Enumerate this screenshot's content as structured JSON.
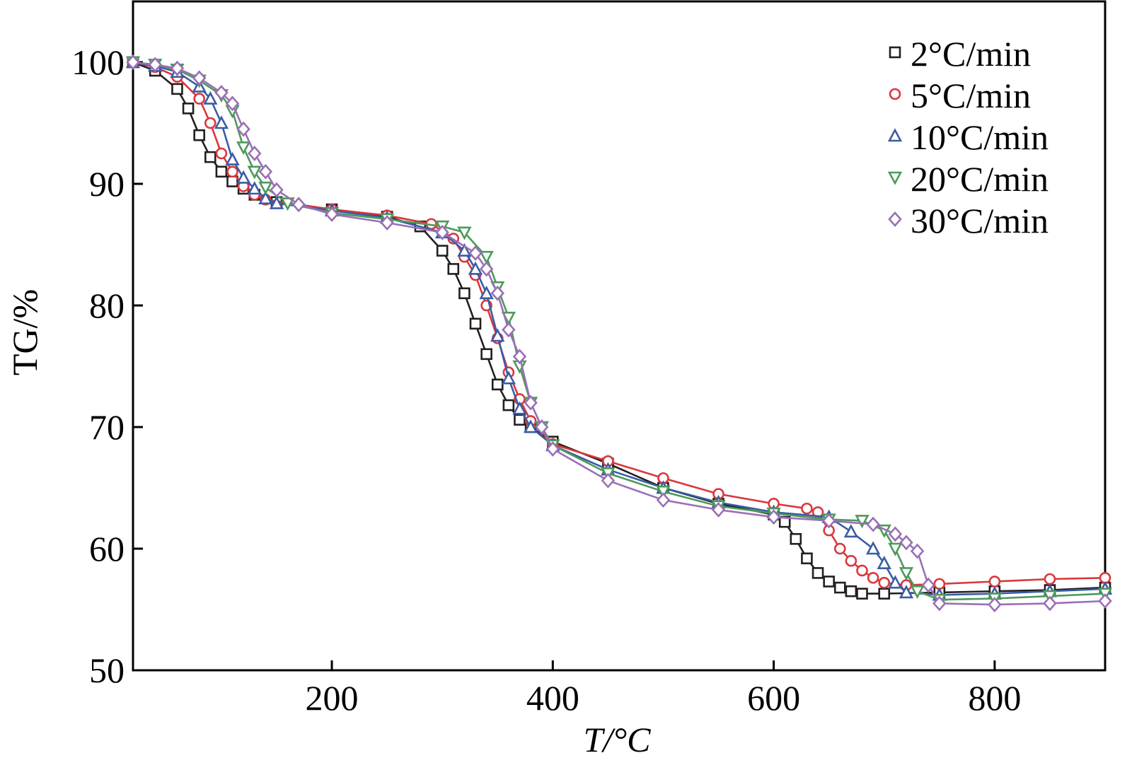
{
  "chart_data": {
    "type": "line",
    "xlabel": "T/°C",
    "ylabel": "TG/%",
    "xlim": [
      20,
      900
    ],
    "ylim": [
      50,
      105
    ],
    "xticks": [
      200,
      400,
      600,
      800
    ],
    "yticks": [
      50,
      60,
      70,
      80,
      90,
      100
    ],
    "grid": false,
    "legend": "top-right",
    "series": [
      {
        "name": "2°C/min",
        "color": "#231f20",
        "marker": "square",
        "points": [
          [
            20,
            100
          ],
          [
            40,
            99.3
          ],
          [
            60,
            97.8
          ],
          [
            70,
            96.2
          ],
          [
            80,
            94
          ],
          [
            90,
            92.2
          ],
          [
            100,
            91
          ],
          [
            110,
            90.2
          ],
          [
            120,
            89.6
          ],
          [
            130,
            89.1
          ],
          [
            150,
            88.5
          ],
          [
            200,
            87.9
          ],
          [
            250,
            87.3
          ],
          [
            280,
            86.5
          ],
          [
            300,
            84.5
          ],
          [
            310,
            83
          ],
          [
            320,
            81
          ],
          [
            330,
            78.5
          ],
          [
            340,
            76
          ],
          [
            350,
            73.5
          ],
          [
            360,
            71.8
          ],
          [
            370,
            70.6
          ],
          [
            380,
            70
          ],
          [
            400,
            68.8
          ],
          [
            450,
            67
          ],
          [
            500,
            65
          ],
          [
            550,
            63.7
          ],
          [
            600,
            62.8
          ],
          [
            610,
            62.2
          ],
          [
            620,
            60.8
          ],
          [
            630,
            59.2
          ],
          [
            640,
            58
          ],
          [
            650,
            57.3
          ],
          [
            660,
            56.8
          ],
          [
            670,
            56.5
          ],
          [
            680,
            56.3
          ],
          [
            700,
            56.3
          ],
          [
            750,
            56.4
          ],
          [
            800,
            56.5
          ],
          [
            850,
            56.6
          ],
          [
            900,
            56.8
          ]
        ]
      },
      {
        "name": "5°C/min",
        "color": "#d9373d",
        "marker": "circle",
        "points": [
          [
            20,
            100
          ],
          [
            40,
            99.6
          ],
          [
            60,
            98.8
          ],
          [
            80,
            97
          ],
          [
            90,
            95
          ],
          [
            100,
            92.5
          ],
          [
            110,
            91
          ],
          [
            120,
            89.8
          ],
          [
            130,
            89.1
          ],
          [
            140,
            88.7
          ],
          [
            200,
            87.9
          ],
          [
            250,
            87.4
          ],
          [
            290,
            86.7
          ],
          [
            310,
            85.5
          ],
          [
            320,
            84
          ],
          [
            330,
            82.5
          ],
          [
            340,
            80
          ],
          [
            350,
            77.3
          ],
          [
            360,
            74.5
          ],
          [
            370,
            72.3
          ],
          [
            380,
            70.5
          ],
          [
            400,
            68.6
          ],
          [
            450,
            67.2
          ],
          [
            500,
            65.8
          ],
          [
            550,
            64.5
          ],
          [
            600,
            63.7
          ],
          [
            630,
            63.3
          ],
          [
            640,
            63
          ],
          [
            650,
            61.5
          ],
          [
            660,
            60
          ],
          [
            670,
            59
          ],
          [
            680,
            58.2
          ],
          [
            690,
            57.6
          ],
          [
            700,
            57.2
          ],
          [
            720,
            57
          ],
          [
            750,
            57.1
          ],
          [
            800,
            57.3
          ],
          [
            850,
            57.5
          ],
          [
            900,
            57.6
          ]
        ]
      },
      {
        "name": "10°C/min",
        "color": "#3a5ca6",
        "marker": "triangle-up",
        "points": [
          [
            20,
            100
          ],
          [
            40,
            99.7
          ],
          [
            60,
            99.2
          ],
          [
            80,
            98
          ],
          [
            90,
            97
          ],
          [
            100,
            95
          ],
          [
            110,
            92
          ],
          [
            120,
            90.5
          ],
          [
            130,
            89.6
          ],
          [
            140,
            88.8
          ],
          [
            150,
            88.4
          ],
          [
            200,
            87.8
          ],
          [
            250,
            87.2
          ],
          [
            300,
            86
          ],
          [
            320,
            84.5
          ],
          [
            330,
            83
          ],
          [
            340,
            81
          ],
          [
            350,
            77.5
          ],
          [
            360,
            74
          ],
          [
            370,
            71.5
          ],
          [
            380,
            70
          ],
          [
            400,
            68.5
          ],
          [
            450,
            66.5
          ],
          [
            500,
            65
          ],
          [
            550,
            63.8
          ],
          [
            600,
            63
          ],
          [
            650,
            62.6
          ],
          [
            670,
            61.4
          ],
          [
            690,
            60
          ],
          [
            700,
            58.8
          ],
          [
            710,
            57.2
          ],
          [
            720,
            56.4
          ],
          [
            750,
            56.2
          ],
          [
            800,
            56.3
          ],
          [
            850,
            56.5
          ],
          [
            900,
            56.7
          ]
        ]
      },
      {
        "name": "20°C/min",
        "color": "#4c9a5a",
        "marker": "triangle-down",
        "points": [
          [
            20,
            100
          ],
          [
            40,
            99.8
          ],
          [
            60,
            99.4
          ],
          [
            80,
            98.5
          ],
          [
            100,
            97.3
          ],
          [
            110,
            96
          ],
          [
            120,
            93
          ],
          [
            130,
            91
          ],
          [
            140,
            89.7
          ],
          [
            160,
            88.4
          ],
          [
            200,
            87.6
          ],
          [
            250,
            87.1
          ],
          [
            300,
            86.5
          ],
          [
            320,
            86
          ],
          [
            340,
            84
          ],
          [
            350,
            81.5
          ],
          [
            360,
            79
          ],
          [
            370,
            75
          ],
          [
            380,
            72
          ],
          [
            390,
            70
          ],
          [
            400,
            68.5
          ],
          [
            450,
            66.2
          ],
          [
            500,
            64.7
          ],
          [
            550,
            63.5
          ],
          [
            600,
            62.9
          ],
          [
            650,
            62.4
          ],
          [
            680,
            62.3
          ],
          [
            700,
            61.5
          ],
          [
            710,
            60
          ],
          [
            720,
            58
          ],
          [
            730,
            56.5
          ],
          [
            750,
            55.8
          ],
          [
            800,
            55.9
          ],
          [
            850,
            56.1
          ],
          [
            900,
            56.3
          ]
        ]
      },
      {
        "name": "30°C/min",
        "color": "#9b6fb6",
        "marker": "diamond",
        "points": [
          [
            20,
            100
          ],
          [
            40,
            99.8
          ],
          [
            60,
            99.5
          ],
          [
            80,
            98.7
          ],
          [
            100,
            97.5
          ],
          [
            110,
            96.6
          ],
          [
            120,
            94.5
          ],
          [
            130,
            92.5
          ],
          [
            140,
            91
          ],
          [
            150,
            89.5
          ],
          [
            170,
            88.3
          ],
          [
            200,
            87.5
          ],
          [
            250,
            86.8
          ],
          [
            300,
            86
          ],
          [
            330,
            84.3
          ],
          [
            340,
            83
          ],
          [
            350,
            81
          ],
          [
            360,
            78
          ],
          [
            370,
            75.8
          ],
          [
            380,
            72
          ],
          [
            390,
            70
          ],
          [
            400,
            68.2
          ],
          [
            450,
            65.6
          ],
          [
            500,
            64
          ],
          [
            550,
            63.2
          ],
          [
            600,
            62.6
          ],
          [
            650,
            62.3
          ],
          [
            690,
            62
          ],
          [
            710,
            61.2
          ],
          [
            720,
            60.5
          ],
          [
            730,
            59.8
          ],
          [
            740,
            57
          ],
          [
            750,
            55.5
          ],
          [
            800,
            55.4
          ],
          [
            850,
            55.5
          ],
          [
            900,
            55.7
          ]
        ]
      }
    ]
  }
}
